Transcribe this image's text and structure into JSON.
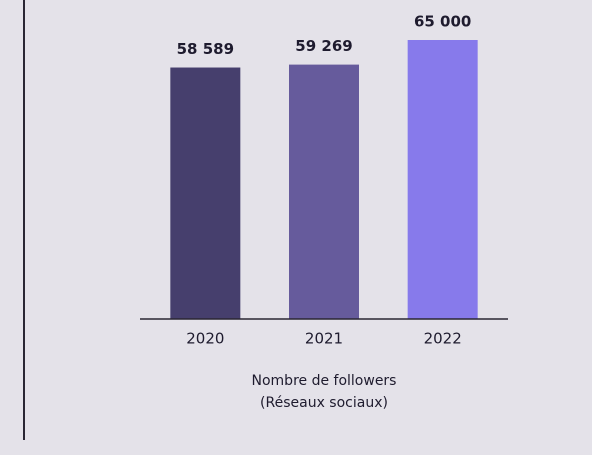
{
  "chart_data": {
    "type": "bar",
    "categories": [
      "2020",
      "2021",
      "2022"
    ],
    "values": [
      58589,
      59269,
      65000
    ],
    "value_labels": [
      "58 589",
      "59 269",
      "65 000"
    ],
    "colors": [
      "#463f6d",
      "#665b9c",
      "#877aeb"
    ],
    "ylim": [
      0,
      65000
    ],
    "x_label": [
      "Nombre de followers",
      "(Réseaux sociaux)"
    ]
  }
}
